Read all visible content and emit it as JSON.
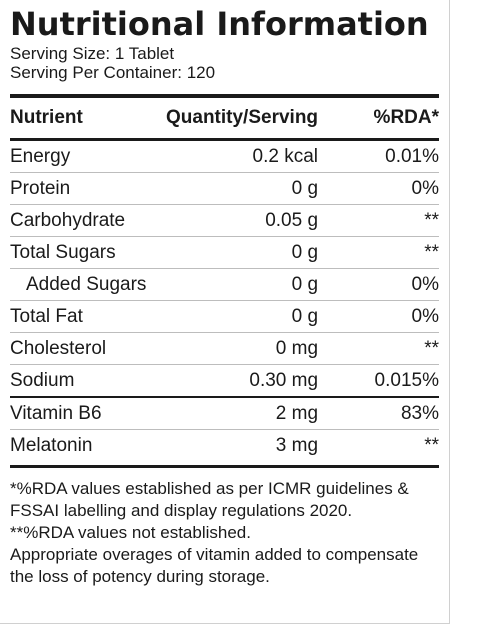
{
  "title": "Nutritional Information",
  "serving_size": "Serving Size: 1 Tablet",
  "servings_per_container": "Serving Per Container: 120",
  "headers": {
    "nutrient": "Nutrient",
    "quantity": "Quantity/Serving",
    "rda": "%RDA*"
  },
  "rows": [
    {
      "nutrient": "Energy",
      "quantity": "0.2 kcal",
      "rda": "0.01%"
    },
    {
      "nutrient": "Protein",
      "quantity": "0 g",
      "rda": "0%"
    },
    {
      "nutrient": "Carbohydrate",
      "quantity": "0.05 g",
      "rda": "**"
    },
    {
      "nutrient": "Total Sugars",
      "quantity": "0 g",
      "rda": "**"
    },
    {
      "nutrient": "Added Sugars",
      "quantity": "0 g",
      "rda": "0%"
    },
    {
      "nutrient": "Total Fat",
      "quantity": "0 g",
      "rda": "0%"
    },
    {
      "nutrient": "Cholesterol",
      "quantity": "0 mg",
      "rda": "**"
    },
    {
      "nutrient": "Sodium",
      "quantity": "0.30 mg",
      "rda": "0.015%"
    },
    {
      "nutrient": "Vitamin B6",
      "quantity": "2 mg",
      "rda": "83%"
    },
    {
      "nutrient": "Melatonin",
      "quantity": "3 mg",
      "rda": "**"
    }
  ],
  "footnotes": [
    "*%RDA values established as per ICMR guidelines &",
    "FSSAI labelling and display regulations 2020.",
    "**%RDA values not established.",
    "Appropriate overages of vitamin added to compensate",
    "the loss of potency during storage."
  ]
}
